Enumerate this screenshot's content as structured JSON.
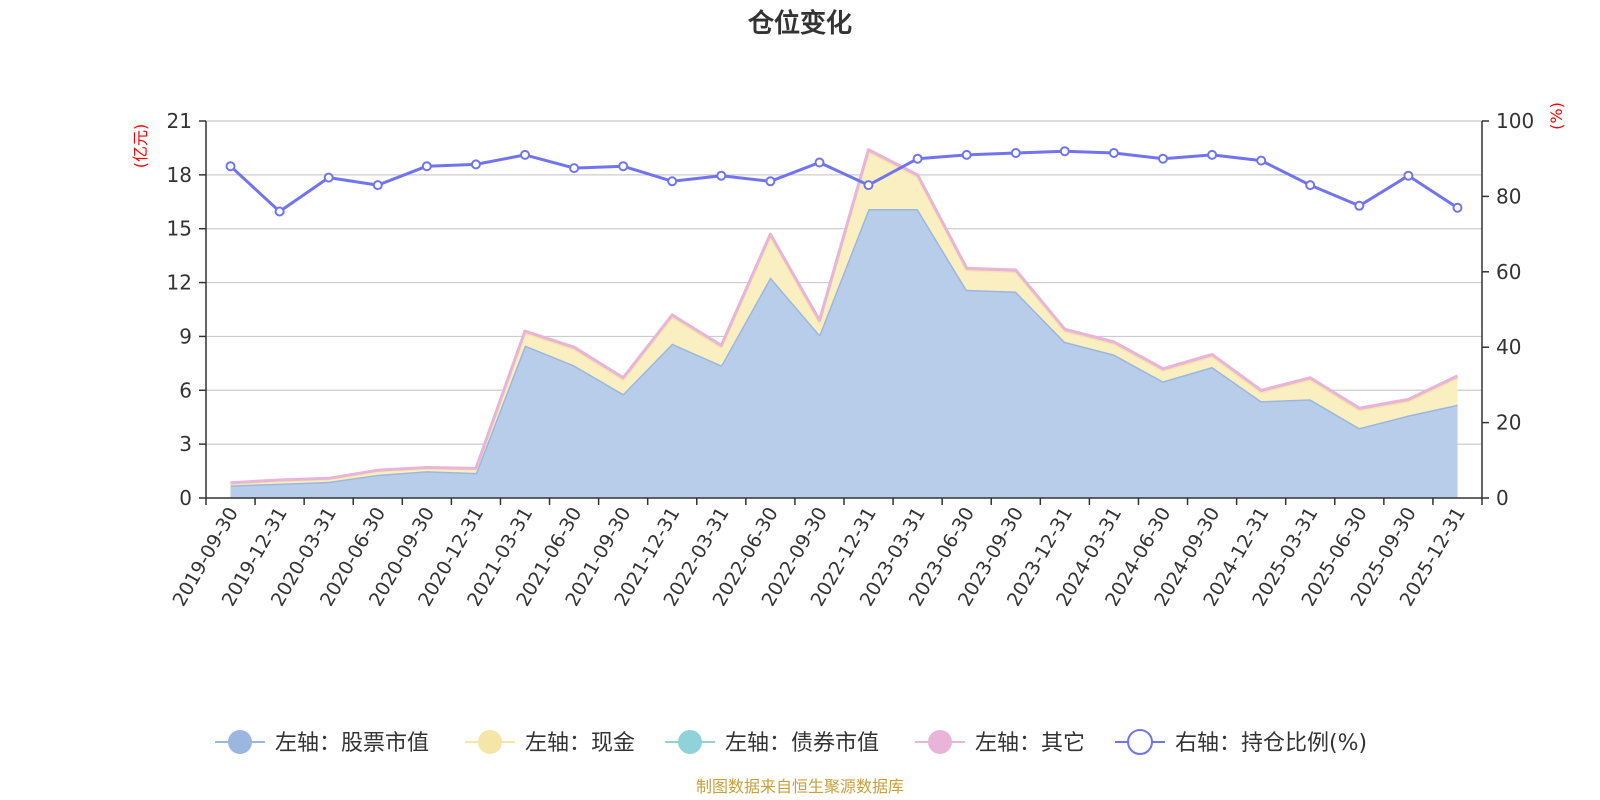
{
  "chart_data": {
    "type": "area",
    "title": "仓位变化",
    "left_unit": "(亿元)",
    "right_unit": "(%)",
    "left_axis": {
      "min": 0,
      "max": 21,
      "ticks": [
        0,
        3,
        6,
        9,
        12,
        15,
        18,
        21
      ]
    },
    "right_axis": {
      "min": 0,
      "max": 100,
      "ticks": [
        0,
        20,
        40,
        60,
        80,
        100
      ]
    },
    "categories": [
      "2019-09-30",
      "2019-12-31",
      "2020-03-31",
      "2020-06-30",
      "2020-09-30",
      "2020-12-31",
      "2021-03-31",
      "2021-06-30",
      "2021-09-30",
      "2021-12-31",
      "2022-03-31",
      "2022-06-30",
      "2022-09-30",
      "2022-12-31",
      "2023-03-31",
      "2023-06-30",
      "2023-09-30",
      "2023-12-31",
      "2024-03-31",
      "2024-06-30",
      "2024-09-30",
      "2024-12-31",
      "2025-03-31",
      "2025-06-30",
      "2025-09-30",
      "2025-12-31"
    ],
    "series": [
      {
        "name": "左轴：股票市值",
        "axis": "left",
        "kind": "stacked-area",
        "color": "#9bb7e0",
        "fill": "#b8cdea",
        "values": [
          0.7,
          0.8,
          0.9,
          1.3,
          1.5,
          1.4,
          8.5,
          7.4,
          5.8,
          8.6,
          7.4,
          12.3,
          9.1,
          16.1,
          16.1,
          11.6,
          11.5,
          8.7,
          8.0,
          6.5,
          7.3,
          5.4,
          5.5,
          3.9,
          4.6,
          5.2
        ]
      },
      {
        "name": "左轴：现金",
        "axis": "left",
        "kind": "stacked-area",
        "color": "#f5e6a8",
        "fill": "#faefc0",
        "values": [
          0.1,
          0.15,
          0.15,
          0.2,
          0.15,
          0.2,
          0.7,
          0.9,
          0.8,
          1.5,
          1.0,
          2.3,
          0.7,
          3.2,
          1.8,
          1.1,
          1.1,
          0.6,
          0.6,
          0.6,
          0.6,
          0.5,
          1.1,
          1.0,
          0.8,
          1.5
        ]
      },
      {
        "name": "左轴：债券市值",
        "axis": "left",
        "kind": "stacked-area",
        "color": "#8fd3d8",
        "fill": "#8fd3d8",
        "values": [
          0,
          0,
          0,
          0,
          0,
          0,
          0,
          0,
          0,
          0,
          0,
          0,
          0,
          0,
          0,
          0,
          0,
          0,
          0,
          0,
          0,
          0,
          0,
          0,
          0,
          0
        ]
      },
      {
        "name": "左轴：其它",
        "axis": "left",
        "kind": "stacked-area",
        "color": "#e8b4d8",
        "fill": "#e8b4d8",
        "values": [
          0.05,
          0.05,
          0.05,
          0.05,
          0.05,
          0.05,
          0.1,
          0.1,
          0.1,
          0.1,
          0.1,
          0.1,
          0.1,
          0.1,
          0.1,
          0.1,
          0.1,
          0.1,
          0.1,
          0.1,
          0.1,
          0.1,
          0.1,
          0.1,
          0.1,
          0.1
        ]
      },
      {
        "name": "右轴：持仓比例(%)",
        "axis": "right",
        "kind": "line",
        "color": "#7074ee",
        "fill": "#ffffff",
        "values": [
          88.0,
          76.0,
          85.0,
          83.0,
          88.0,
          88.5,
          91.0,
          87.5,
          88.0,
          84.0,
          85.5,
          84.0,
          89.0,
          83.0,
          90.0,
          91.0,
          91.5,
          92.0,
          91.5,
          90.0,
          91.0,
          89.5,
          83.0,
          77.5,
          85.5,
          77.0
        ]
      }
    ]
  },
  "source": "制图数据来自恒生聚源数据库"
}
